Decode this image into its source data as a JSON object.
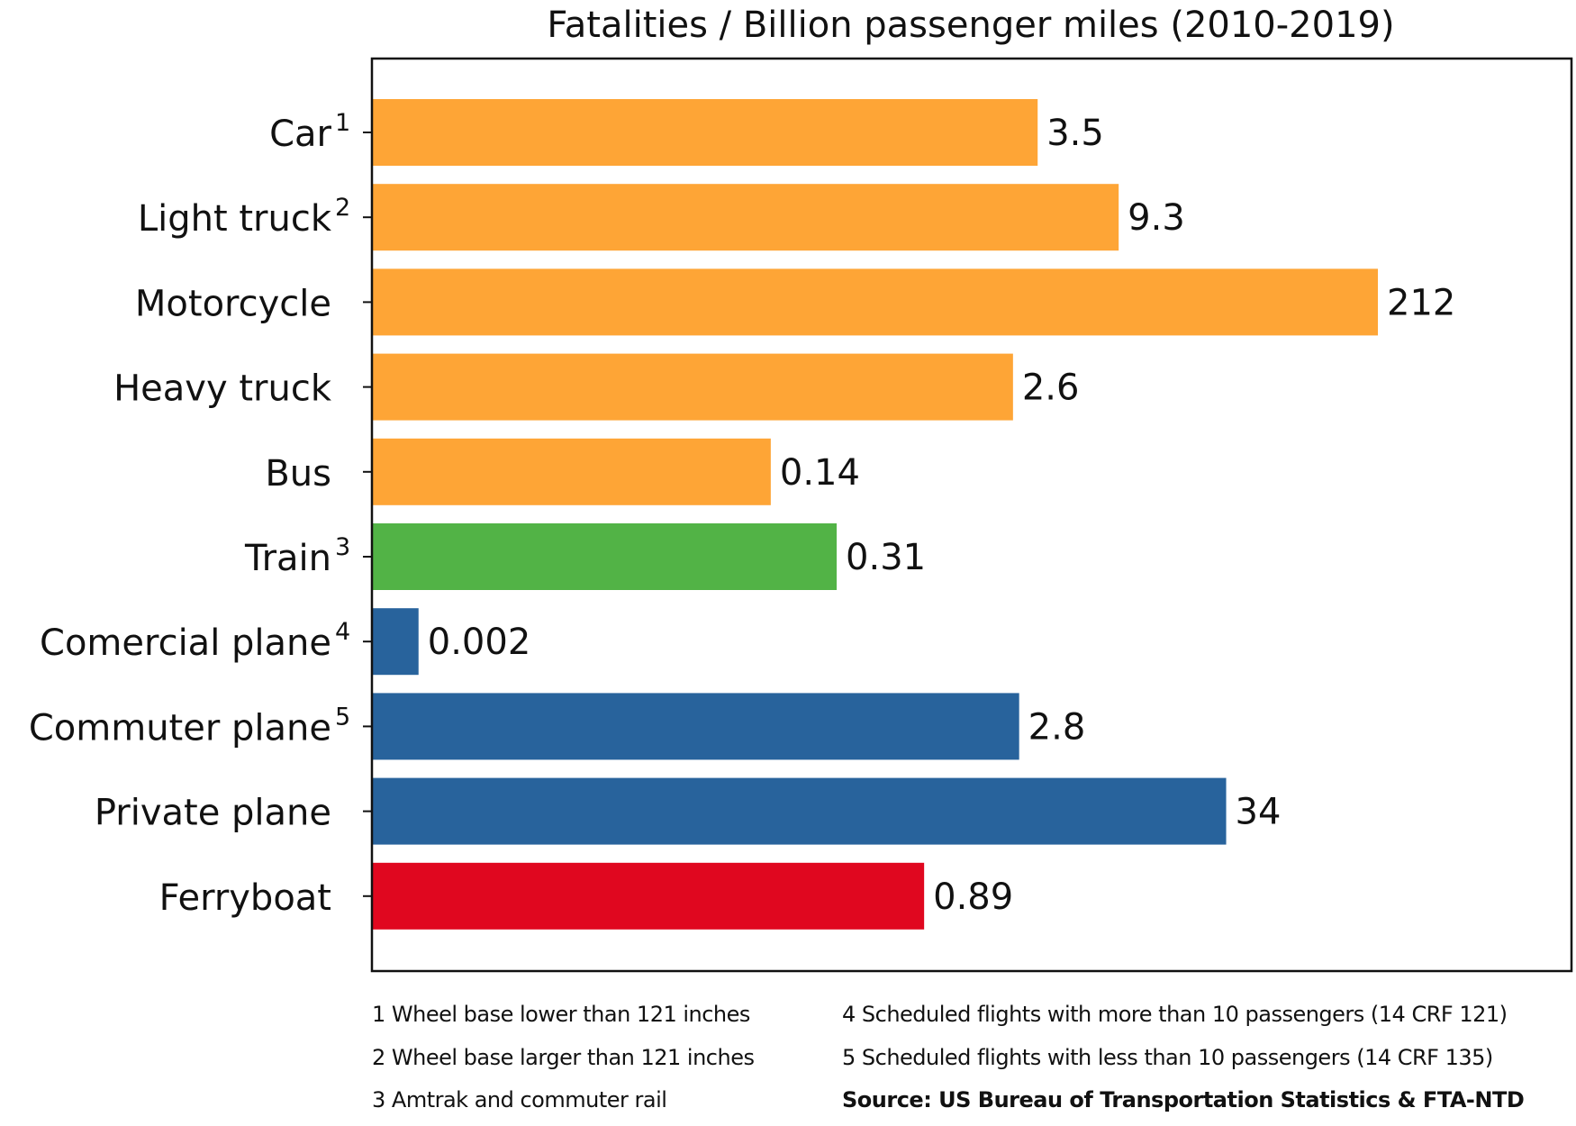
{
  "chart_data": {
    "type": "bar",
    "orientation": "horizontal",
    "title": "Fatalities / Billion passenger miles (2010-2019)",
    "x_scale": "log",
    "xlim": [
      0.00114,
      2190
    ],
    "grid": false,
    "categories": [
      "Car",
      "Light truck",
      "Motorcycle",
      "Heavy truck",
      "Bus",
      "Train",
      "Comercial plane",
      "Commuter plane",
      "Private plane",
      "Ferryboat"
    ],
    "superscripts": [
      "1",
      "2",
      "",
      "",
      "",
      "3",
      "4",
      "5",
      "",
      ""
    ],
    "values": [
      3.5,
      9.3,
      212,
      2.6,
      0.14,
      0.31,
      0.002,
      2.8,
      34,
      0.89
    ],
    "value_labels": [
      "3.5",
      "9.3",
      "212",
      "2.6",
      "0.14",
      "0.31",
      "0.002",
      "2.8",
      "34",
      "0.89"
    ],
    "colors": [
      "#fea536",
      "#fea536",
      "#fea536",
      "#fea536",
      "#fea536",
      "#52b346",
      "#28639c",
      "#28639c",
      "#28639c",
      "#e0071f"
    ]
  },
  "footnotes": {
    "left": [
      "1  Wheel base lower than 121 inches",
      "2  Wheel base larger than 121 inches",
      "3  Amtrak and commuter rail"
    ],
    "right": [
      "4  Scheduled flights with more than 10 passengers (14 CRF 121)",
      "5  Scheduled flights with less than 10 passengers (14 CRF 135)"
    ],
    "source": "Source: US Bureau of Transportation Statistics & FTA-NTD"
  }
}
